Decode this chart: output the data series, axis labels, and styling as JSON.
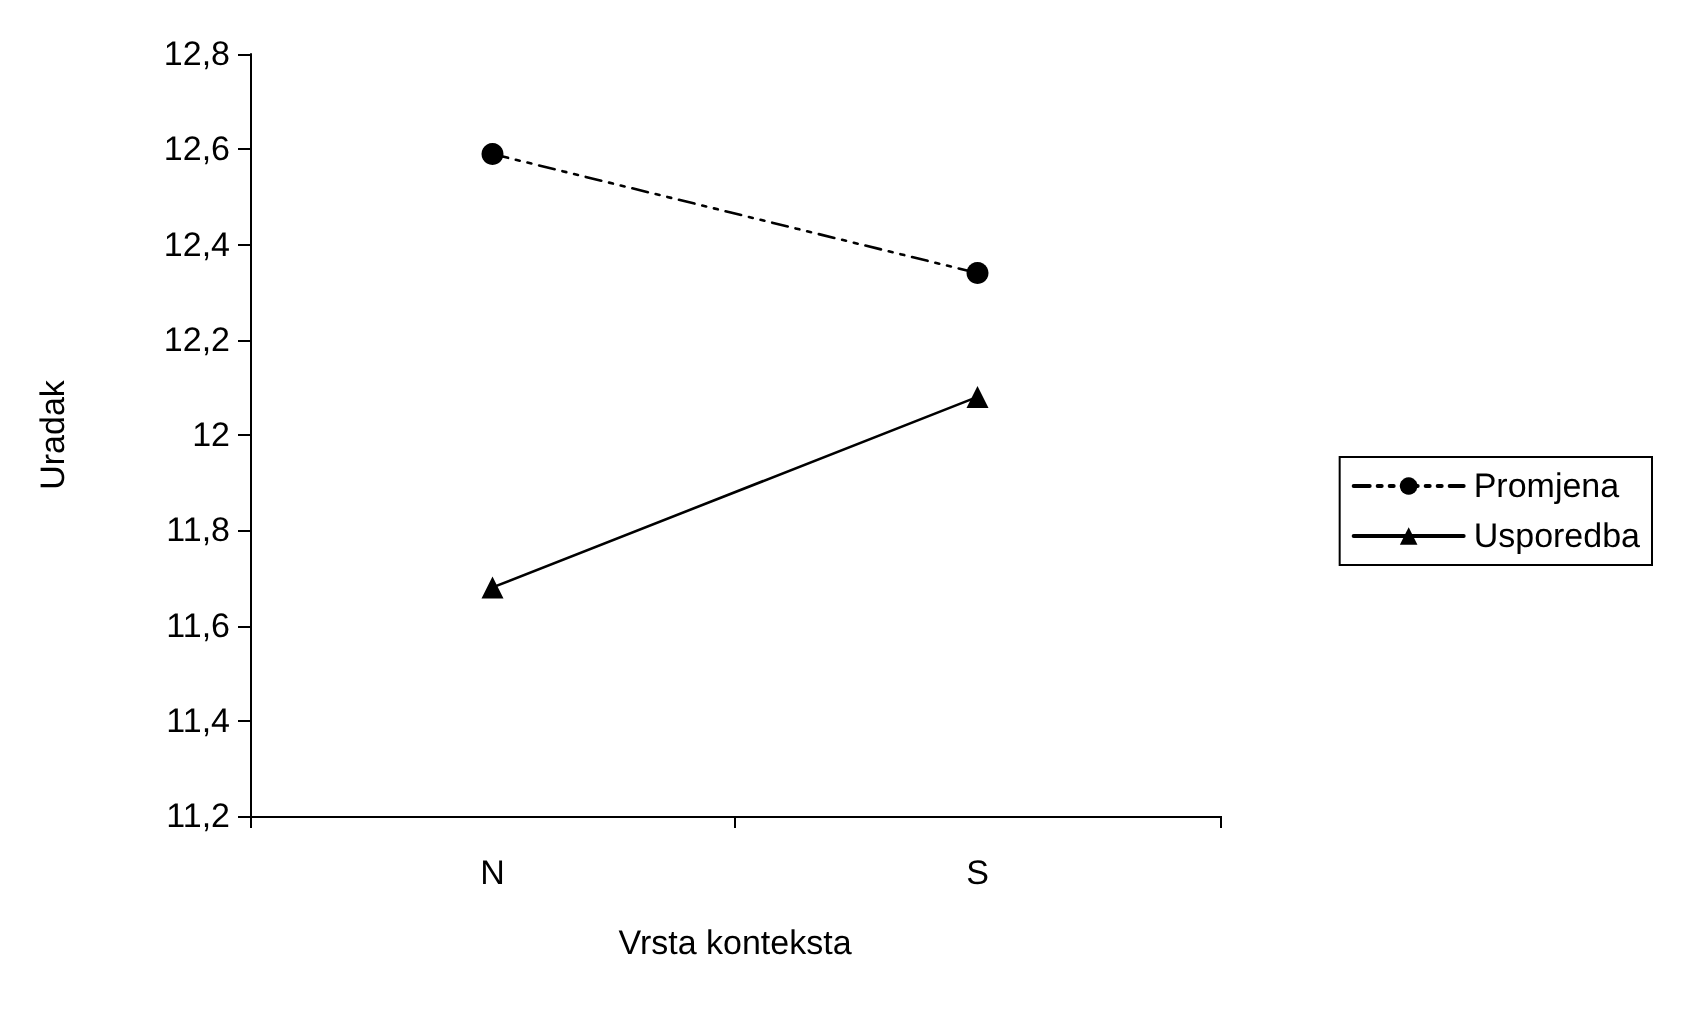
{
  "chart_data": {
    "type": "line",
    "xlabel": "Vrsta konteksta",
    "ylabel": "Uradak",
    "categories": [
      "N",
      "S"
    ],
    "series": [
      {
        "name": "Promjena",
        "color": "#000000",
        "values": [
          12.59,
          12.34
        ],
        "marker": "circle",
        "line_style": "dashed"
      },
      {
        "name": "Usporedba",
        "color": "#000000",
        "values": [
          11.68,
          12.08
        ],
        "marker": "triangle",
        "line_style": "solid"
      }
    ],
    "ylim": [
      11.2,
      12.8
    ],
    "yticks": [
      {
        "value": 11.2,
        "label": "11,2"
      },
      {
        "value": 11.4,
        "label": "11,4"
      },
      {
        "value": 11.6,
        "label": "11,6"
      },
      {
        "value": 11.8,
        "label": "11,8"
      },
      12,
      {
        "value": 12.2,
        "label": "12,2"
      },
      {
        "value": 12.4,
        "label": "12,4"
      },
      {
        "value": 12.6,
        "label": "12,6"
      },
      {
        "value": 12.8,
        "label": "12,8"
      }
    ],
    "grid": false,
    "legend": "right"
  }
}
